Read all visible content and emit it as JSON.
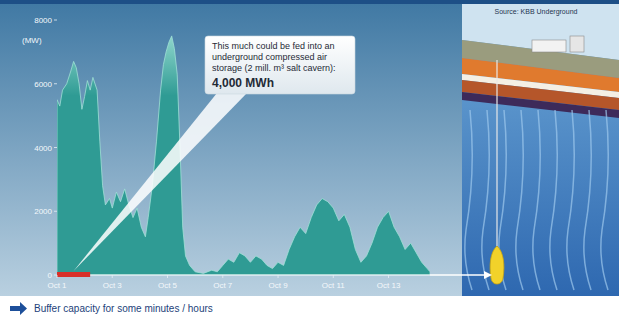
{
  "chart_data": {
    "type": "area",
    "y_label": "(MW)",
    "x": [
      1.0,
      1.1,
      1.2,
      1.35,
      1.5,
      1.6,
      1.7,
      1.8,
      1.9,
      2.0,
      2.1,
      2.2,
      2.3,
      2.45,
      2.55,
      2.65,
      2.75,
      2.9,
      3.0,
      3.15,
      3.3,
      3.45,
      3.6,
      3.75,
      3.9,
      4.05,
      4.2,
      4.3,
      4.45,
      4.6,
      4.75,
      4.85,
      4.95,
      5.05,
      5.15,
      5.25,
      5.35,
      5.45,
      5.55,
      5.65,
      5.8,
      6.0,
      6.3,
      6.6,
      6.8,
      7.0,
      7.2,
      7.4,
      7.6,
      7.8,
      8.0,
      8.2,
      8.4,
      8.6,
      8.8,
      9.0,
      9.2,
      9.4,
      9.6,
      9.8,
      10.0,
      10.2,
      10.4,
      10.6,
      10.8,
      11.0,
      11.2,
      11.4,
      11.6,
      11.8,
      12.0,
      12.2,
      12.4,
      12.6,
      12.8,
      13.0,
      13.2,
      13.4,
      13.6,
      13.8,
      14.0,
      14.2,
      14.4,
      14.5
    ],
    "values": [
      5500,
      5300,
      5800,
      6000,
      6400,
      6700,
      6500,
      6000,
      5200,
      5600,
      6100,
      5800,
      6200,
      5800,
      4200,
      2800,
      2200,
      2400,
      2100,
      2600,
      2300,
      2700,
      2200,
      1800,
      2100,
      1500,
      1200,
      1800,
      2800,
      4200,
      5800,
      6600,
      7000,
      7300,
      7500,
      7100,
      6300,
      4000,
      1500,
      600,
      300,
      100,
      50,
      150,
      100,
      300,
      500,
      400,
      700,
      600,
      400,
      600,
      500,
      300,
      200,
      400,
      300,
      800,
      1200,
      1500,
      1300,
      1800,
      2200,
      2400,
      2300,
      2100,
      1700,
      1900,
      1500,
      800,
      400,
      600,
      1000,
      1500,
      1800,
      2000,
      1500,
      1200,
      800,
      1000,
      700,
      400,
      200,
      100
    ],
    "color": "#2f9b94",
    "xlim": [
      1,
      14.5
    ],
    "xticks": [
      {
        "value": 1,
        "label": "Oct 1"
      },
      {
        "value": 3,
        "label": "Oct 3"
      },
      {
        "value": 5,
        "label": "Oct 5"
      },
      {
        "value": 7,
        "label": "Oct 7"
      },
      {
        "value": 9,
        "label": "Oct 9"
      },
      {
        "value": 11,
        "label": "Oct 11"
      },
      {
        "value": 13,
        "label": "Oct 13"
      }
    ],
    "ylim": [
      0,
      8000
    ],
    "yticks": [
      0,
      2000,
      4000,
      6000,
      8000
    ],
    "grid": false,
    "storage_range": [
      1,
      2.2
    ],
    "annotation": {
      "text": "This much could be fed into an underground compressed air storage (2 mill. m³ salt cavern):",
      "value_label": "4,000 MWh"
    },
    "caption": "Buffer capacity for some minutes / hours",
    "source": "Source: KBB Underground"
  }
}
